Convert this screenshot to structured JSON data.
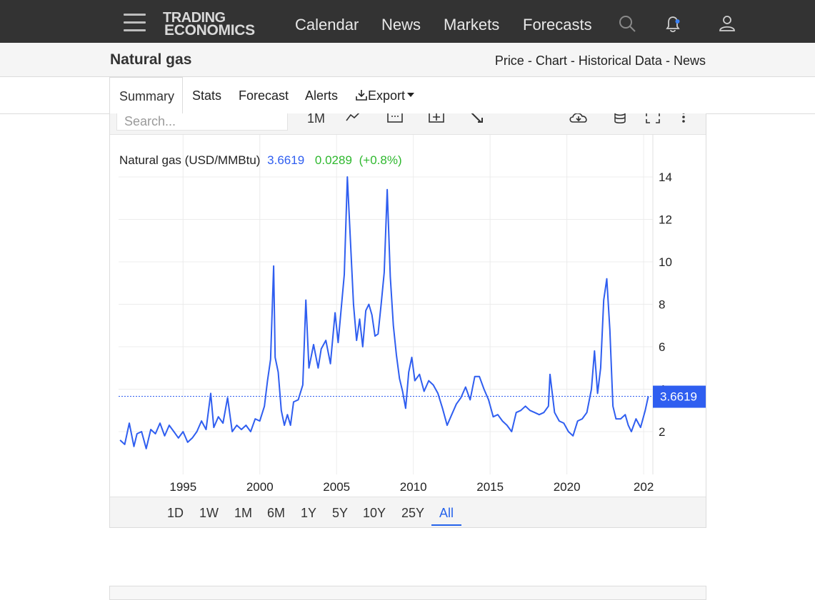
{
  "nav": {
    "logo_line1": "TRADING",
    "logo_line2": "ECONOMICS",
    "links": [
      "Calendar",
      "News",
      "Markets",
      "Forecasts"
    ]
  },
  "header": {
    "title": "Natural gas",
    "crumb_price": "Price",
    "crumb_chart": "Chart",
    "crumb_hist": "Historical Data",
    "crumb_news": "News",
    "sep": "-"
  },
  "tabs": {
    "summary": "Summary",
    "stats": "Stats",
    "forecast": "Forecast",
    "alerts": "Alerts",
    "export": "Export"
  },
  "toolbar": {
    "search_placeholder": "Search...",
    "interval": "1M"
  },
  "ranges": [
    "1D",
    "1W",
    "1M",
    "6M",
    "1Y",
    "5Y",
    "10Y",
    "25Y",
    "All"
  ],
  "active_range": "All",
  "colors": {
    "line": "#2f5ef0",
    "positive": "#2eb82e",
    "nav_bg": "#333333"
  },
  "chart_data": {
    "type": "line",
    "label_name": "Natural gas (USD/MMBtu)",
    "last_value": "3.6619",
    "change": "0.0289",
    "change_pct": "(+0.8%)",
    "x_ticks": [
      "1995",
      "2000",
      "2005",
      "2010",
      "2015",
      "2020",
      "202"
    ],
    "y_ticks": [
      "2",
      "4",
      "6",
      "8",
      "10",
      "12",
      "14"
    ],
    "ylim": [
      0,
      14
    ],
    "xlim": [
      1990.8,
      2025.6
    ],
    "grid": true,
    "series": [
      {
        "x": [
          1990.9,
          1991.2,
          1991.5,
          1991.8,
          1992.0,
          1992.3,
          1992.6,
          1992.9,
          1993.2,
          1993.5,
          1993.8,
          1994.1,
          1994.4,
          1994.7,
          1995.0,
          1995.3,
          1995.6,
          1995.9,
          1996.2,
          1996.5,
          1996.8,
          1997.0,
          1997.3,
          1997.6,
          1997.9,
          1998.2,
          1998.5,
          1998.8,
          1999.1,
          1999.4,
          1999.7,
          2000.0,
          2000.3,
          2000.5,
          2000.7,
          2000.9,
          2001.0,
          2001.2,
          2001.4,
          2001.6,
          2001.8,
          2002.0,
          2002.2,
          2002.5,
          2002.8,
          2003.0,
          2003.2,
          2003.5,
          2003.8,
          2004.0,
          2004.3,
          2004.6,
          2004.9,
          2005.1,
          2005.3,
          2005.5,
          2005.7,
          2005.9,
          2006.1,
          2006.3,
          2006.5,
          2006.7,
          2006.9,
          2007.1,
          2007.3,
          2007.5,
          2007.7,
          2007.9,
          2008.1,
          2008.3,
          2008.5,
          2008.7,
          2008.9,
          2009.1,
          2009.3,
          2009.5,
          2009.7,
          2009.9,
          2010.1,
          2010.4,
          2010.7,
          2011.0,
          2011.3,
          2011.6,
          2011.9,
          2012.2,
          2012.5,
          2012.8,
          2013.1,
          2013.4,
          2013.7,
          2014.0,
          2014.3,
          2014.6,
          2014.9,
          2015.2,
          2015.5,
          2015.8,
          2016.1,
          2016.4,
          2016.7,
          2017.0,
          2017.3,
          2017.6,
          2017.9,
          2018.2,
          2018.5,
          2018.8,
          2018.9,
          2019.2,
          2019.5,
          2019.8,
          2020.1,
          2020.4,
          2020.7,
          2021.0,
          2021.3,
          2021.6,
          2021.8,
          2022.0,
          2022.2,
          2022.4,
          2022.6,
          2022.8,
          2023.0,
          2023.2,
          2023.5,
          2023.8,
          2024.0,
          2024.2,
          2024.5,
          2024.8,
          2025.1,
          2025.3
        ],
        "y": [
          1.6,
          1.4,
          2.4,
          1.3,
          1.9,
          2.0,
          1.2,
          2.1,
          1.9,
          2.4,
          1.8,
          2.3,
          2.0,
          1.7,
          2.0,
          1.5,
          1.7,
          2.0,
          2.5,
          2.1,
          3.8,
          2.2,
          2.7,
          2.4,
          3.6,
          2.0,
          2.3,
          2.1,
          2.3,
          2.0,
          2.6,
          2.5,
          3.2,
          4.4,
          5.4,
          9.8,
          5.5,
          4.8,
          3.0,
          2.3,
          2.8,
          2.3,
          3.4,
          3.5,
          4.2,
          8.2,
          5.0,
          6.1,
          5.0,
          5.9,
          6.3,
          5.2,
          7.6,
          6.2,
          7.8,
          9.4,
          14.0,
          11.0,
          8.0,
          6.3,
          7.3,
          6.0,
          7.7,
          8.0,
          7.5,
          6.5,
          6.6,
          8.0,
          9.5,
          13.4,
          9.3,
          7.0,
          5.6,
          4.5,
          3.9,
          3.1,
          4.8,
          5.5,
          4.4,
          4.7,
          3.9,
          4.4,
          4.2,
          3.8,
          3.1,
          2.3,
          2.8,
          3.3,
          3.6,
          4.1,
          3.5,
          4.6,
          4.6,
          4.0,
          3.5,
          2.7,
          2.8,
          2.5,
          2.3,
          2.0,
          2.9,
          3.0,
          3.2,
          3.0,
          2.9,
          2.8,
          2.9,
          3.2,
          4.7,
          2.9,
          2.5,
          2.4,
          2.0,
          1.8,
          2.5,
          2.6,
          2.9,
          4.0,
          5.8,
          3.8,
          5.0,
          8.2,
          9.2,
          6.8,
          3.2,
          2.6,
          2.6,
          2.8,
          2.3,
          2.0,
          2.6,
          2.2,
          3.0,
          3.6619
        ]
      }
    ]
  }
}
